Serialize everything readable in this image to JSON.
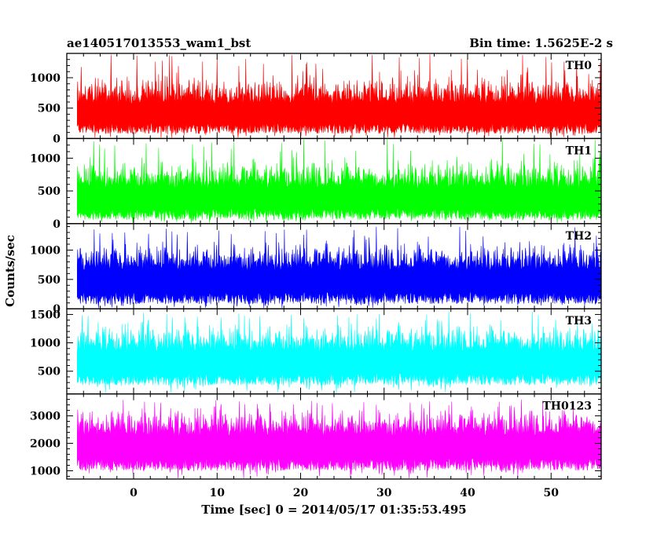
{
  "chart_data": {
    "type": "line",
    "title": "ae140517013553_wam1_bst",
    "subtitle": "Bin time: 1.5625E-2 s",
    "xlabel": "Time [sec] 0 = 2014/05/17 01:35:53.495",
    "ylabel": "Counts/sec",
    "xlim": [
      -8,
      56
    ],
    "data_x_range": [
      -6.75,
      56
    ],
    "x_ticks": [
      0,
      10,
      20,
      30,
      40,
      50
    ],
    "grid": false,
    "legend": "none",
    "panels": [
      {
        "name": "TH0",
        "color": "#ff0000",
        "ylim": [
          0,
          1400
        ],
        "y_ticks": [
          0,
          500,
          1000
        ],
        "mean": 480,
        "low": 80,
        "typical_high": 900,
        "peak": 1400
      },
      {
        "name": "TH1",
        "color": "#00ff00",
        "ylim": [
          0,
          1300
        ],
        "y_ticks": [
          0,
          500,
          1000
        ],
        "mean": 450,
        "low": 60,
        "typical_high": 850,
        "peak": 1300
      },
      {
        "name": "TH2",
        "color": "#0000ff",
        "ylim": [
          0,
          1450
        ],
        "y_ticks": [
          0,
          500,
          1000
        ],
        "mean": 550,
        "low": 80,
        "typical_high": 1000,
        "peak": 1400
      },
      {
        "name": "TH3",
        "color": "#00ffff",
        "ylim": [
          100,
          1600
        ],
        "y_ticks": [
          500,
          1000,
          1500
        ],
        "mean": 740,
        "low": 250,
        "typical_high": 1200,
        "peak": 1550
      },
      {
        "name": "TH0123",
        "color": "#ff00ff",
        "ylim": [
          700,
          3800
        ],
        "y_ticks": [
          1000,
          2000,
          3000
        ],
        "mean": 2050,
        "low": 1000,
        "typical_high": 3000,
        "peak": 3600
      }
    ]
  }
}
